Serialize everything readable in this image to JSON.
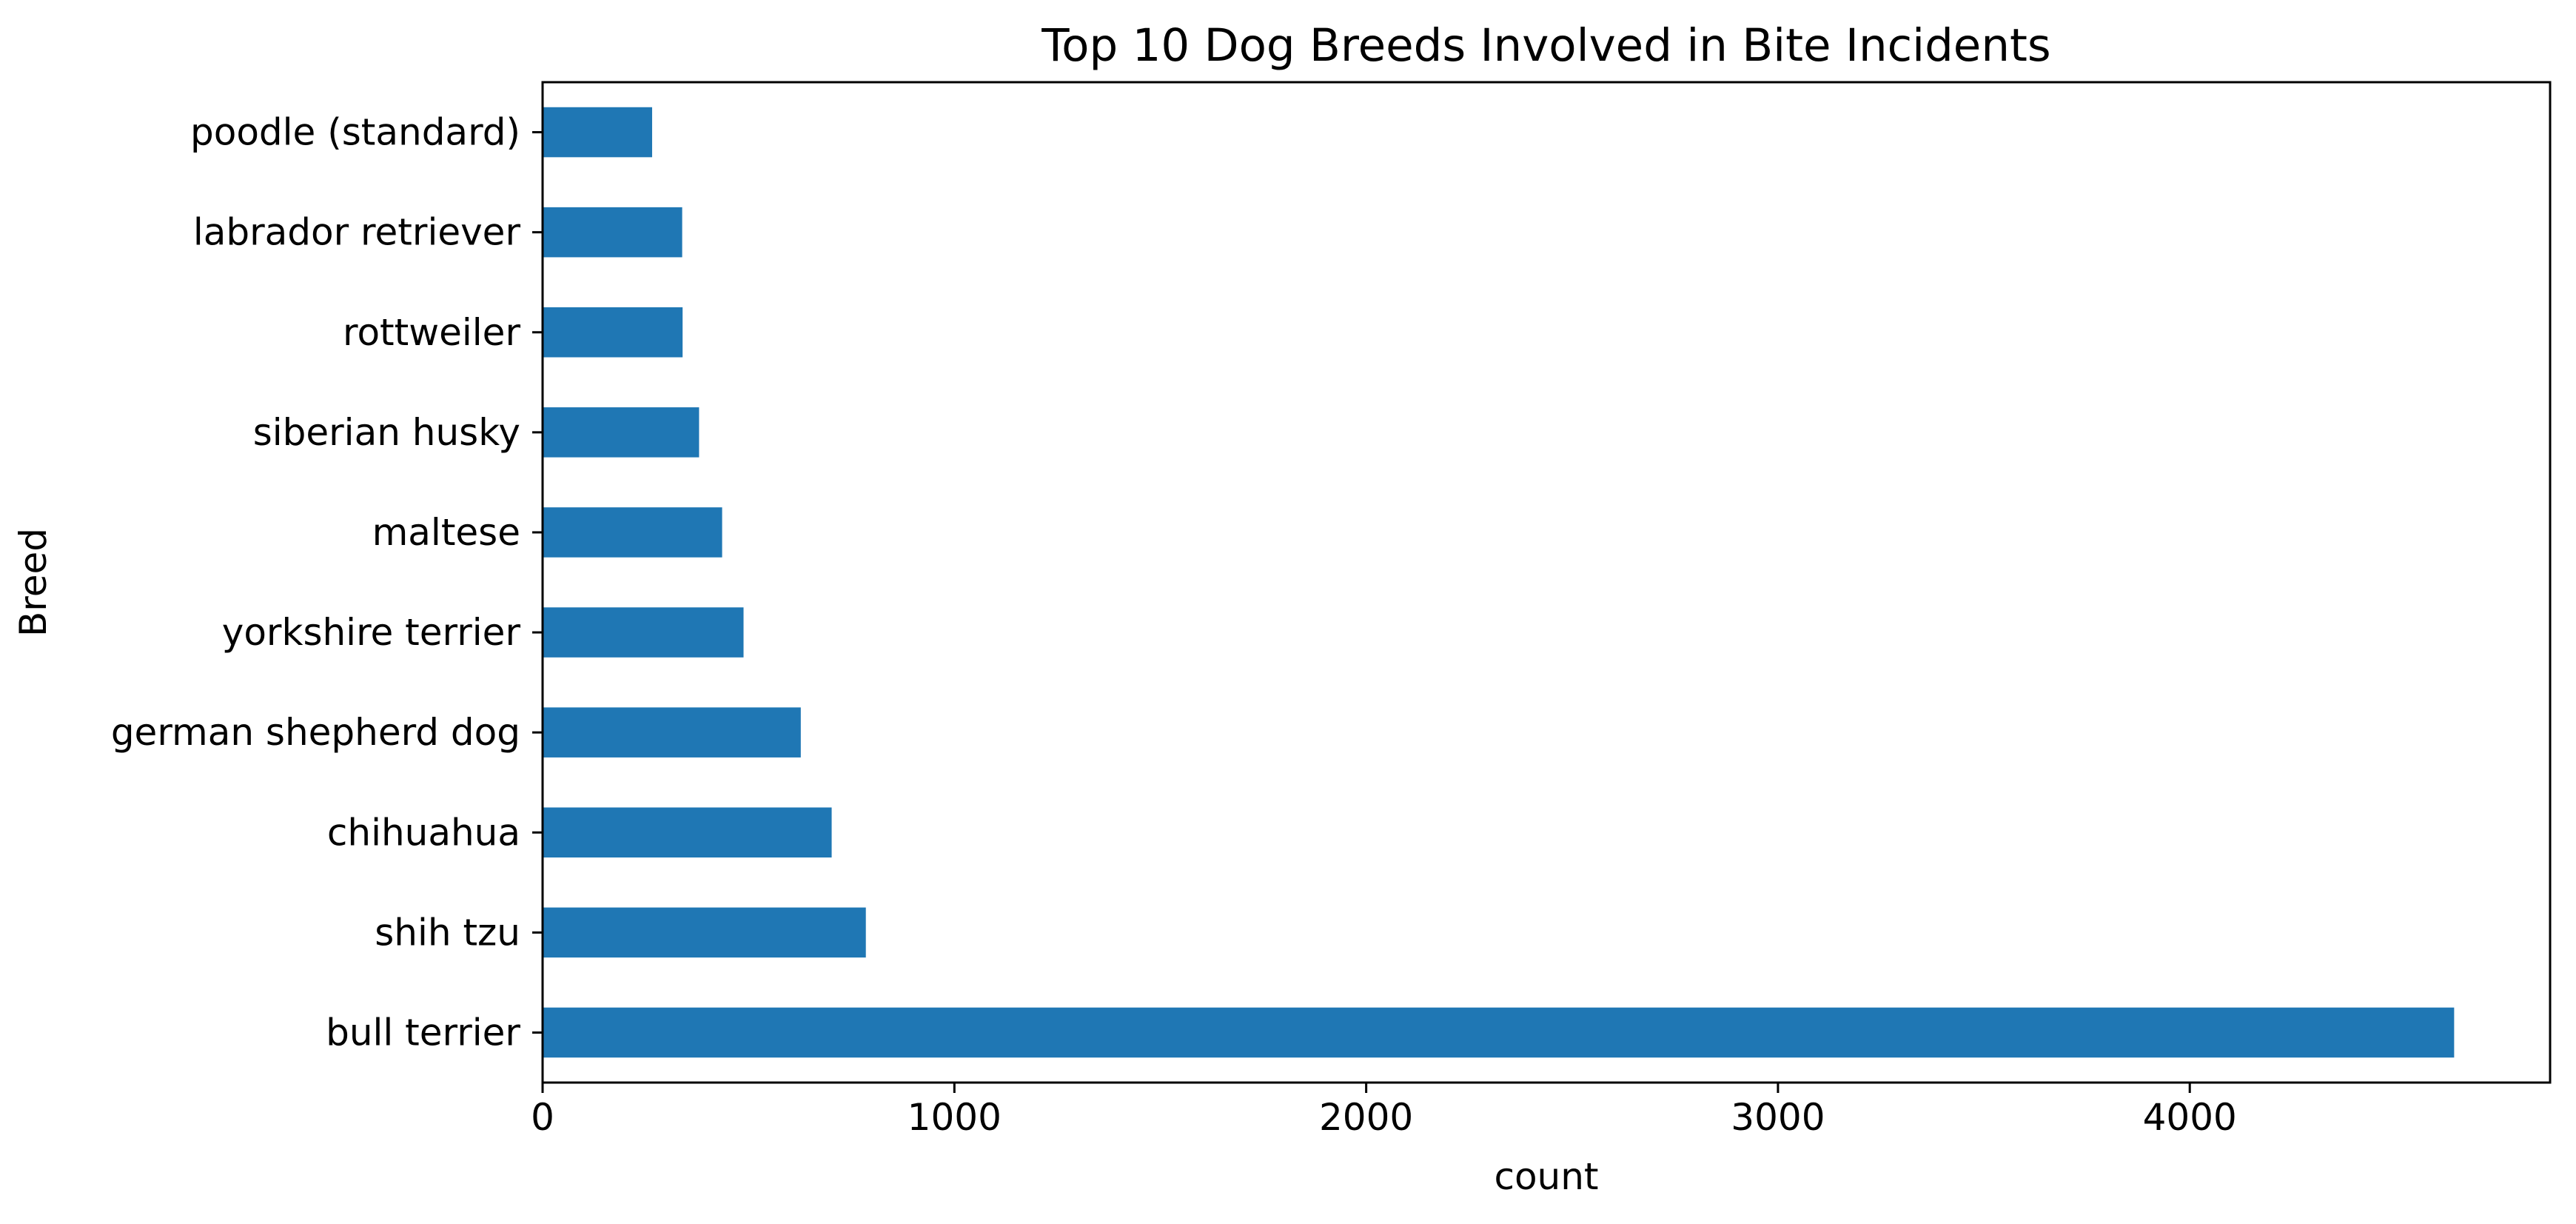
{
  "colors": {
    "bar": "#1f77b4",
    "axis": "#000000",
    "background": "#ffffff"
  },
  "chart_data": {
    "type": "bar",
    "orientation": "horizontal",
    "title": "Top 10 Dog Breeds Involved in Bite Incidents",
    "xlabel": "count",
    "ylabel": "Breed",
    "categories": [
      "bull terrier",
      "shih tzu",
      "chihuahua",
      "german shepherd dog",
      "yorkshire terrier",
      "maltese",
      "siberian husky",
      "rottweiler",
      "labrador retriever",
      "poodle (standard)"
    ],
    "values": [
      4642,
      785,
      702,
      627,
      488,
      436,
      380,
      340,
      339,
      266
    ],
    "xlim": [
      0,
      4875
    ],
    "xticks": [
      0,
      1000,
      2000,
      3000,
      4000
    ],
    "xtick_labels": [
      "0",
      "1000",
      "2000",
      "3000",
      "4000"
    ],
    "grid": false,
    "legend": "none"
  }
}
